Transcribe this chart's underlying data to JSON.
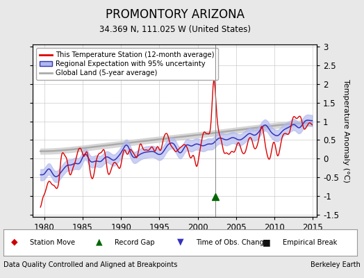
{
  "title": "PROMONTORY ARIZONA",
  "subtitle": "34.369 N, 111.025 W (United States)",
  "ylabel": "Temperature Anomaly (°C)",
  "xlabel_bottom": "Data Quality Controlled and Aligned at Breakpoints",
  "xlabel_right": "Berkeley Earth",
  "xlim": [
    1978.5,
    2015.5
  ],
  "ylim": [
    -1.55,
    3.05
  ],
  "yticks": [
    -1.5,
    -1.0,
    -0.5,
    0.0,
    0.5,
    1.0,
    1.5,
    2.0,
    2.5,
    3.0
  ],
  "xticks": [
    1980,
    1985,
    1990,
    1995,
    2000,
    2005,
    2010,
    2015
  ],
  "red_color": "#dd0000",
  "blue_color": "#3333bb",
  "blue_fill_color": "#b0b8ee",
  "gray_color": "#aaaaaa",
  "gray_fill_color": "#d0d0d0",
  "bg_color": "#e8e8e8",
  "plot_bg_color": "#ffffff",
  "grid_color": "#cccccc",
  "marker_green": "#006600",
  "marker_blue_down": "#3333bb",
  "marker_red": "#cc0000",
  "marker_black": "#111111",
  "record_gap_x": 2002.3,
  "record_gap_y": -1.02
}
